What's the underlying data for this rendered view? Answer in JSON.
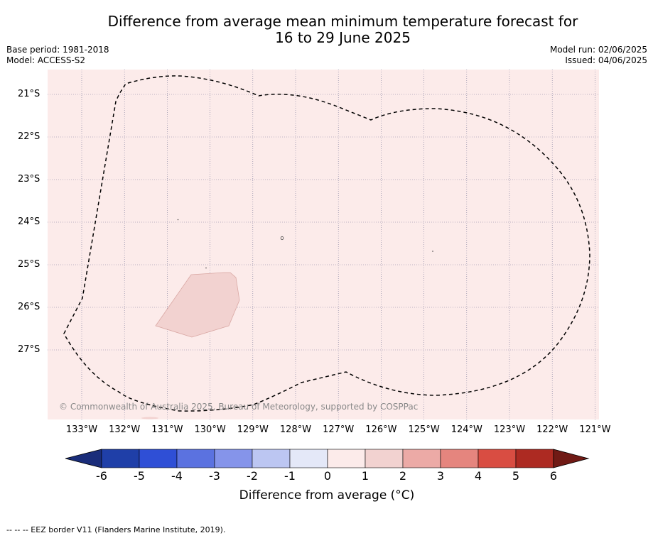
{
  "title_line1": "Difference from average mean minimum temperature forecast for",
  "title_line2": "16 to 29 June 2025",
  "base_period": "Base period: 1981-2018",
  "model": "Model: ACCESS-S2",
  "model_run": "Model run: 02/06/2025",
  "issued": "Issued: 04/06/2025",
  "copyright": "© Commonwealth of Australia 2025, Bureau of Meteorology, supported by COSPPac",
  "footnote": "-- -- -- EEZ border V11 (Flanders Marine Institute, 2019).",
  "colorbar": {
    "label": "Difference from average (°C)",
    "ticks": [
      "-6",
      "-5",
      "-4",
      "-3",
      "-2",
      "-1",
      "0",
      "1",
      "2",
      "3",
      "4",
      "5",
      "6"
    ],
    "colors": [
      "#1f3fa8",
      "#2f4fd6",
      "#5b72e0",
      "#8594ea",
      "#bcc6f2",
      "#e4e8f8",
      "#fcebea",
      "#f2d2d0",
      "#ecaaa6",
      "#e5857e",
      "#d94d42",
      "#ad2a22"
    ],
    "under_color": "#1a2d7a",
    "over_color": "#701a15"
  },
  "chart_data": {
    "type": "map",
    "lat_labels": [
      "21°S",
      "22°S",
      "23°S",
      "24°S",
      "25°S",
      "26°S",
      "27°S"
    ],
    "lon_labels": [
      "133°W",
      "132°W",
      "131°W",
      "130°W",
      "129°W",
      "128°W",
      "127°W",
      "126°W",
      "125°W",
      "124°W",
      "123°W",
      "122°W",
      "121°W"
    ],
    "background_anomaly_range": [
      0,
      1
    ],
    "background_color": "#fcebea",
    "patch_anomaly_range": [
      1,
      2
    ],
    "patch_color": "#f2d2d0"
  }
}
